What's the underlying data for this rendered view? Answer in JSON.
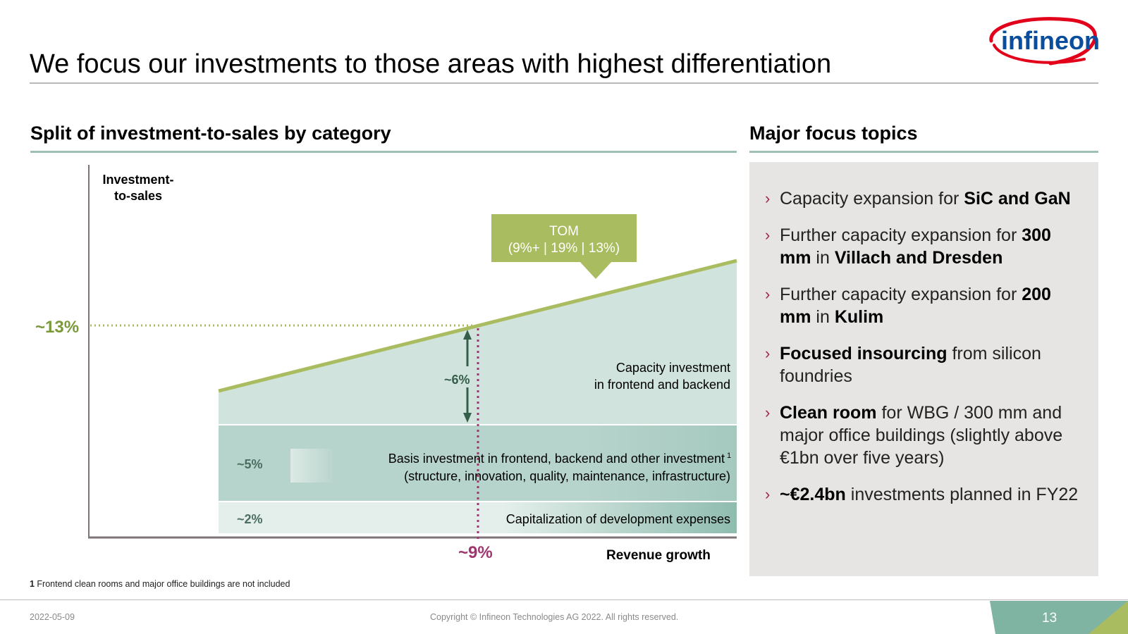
{
  "slide": {
    "title": "We focus our investments to those areas with highest differentiation",
    "logo_text": "infineon",
    "left_heading": "Split of investment-to-sales by category",
    "right_heading": "Major focus topics"
  },
  "diagram": {
    "y_axis_label": [
      "Investment-",
      "to-sales"
    ],
    "x_axis_label": "Revenue growth",
    "target_value": "~13%",
    "growth_value": "~9%",
    "delta_value": "~6%",
    "tom_box": [
      "TOM",
      "(9%+ | 19% | 13%)"
    ],
    "layers": [
      {
        "name": "capacity",
        "value": "",
        "label": [
          "Capacity investment",
          "in frontend and backend"
        ]
      },
      {
        "name": "basis",
        "value": "~5%",
        "label": [
          "Basis investment in frontend, backend and other investment",
          "(structure, innovation, quality, maintenance, infrastructure)"
        ],
        "footnote_marker": "1"
      },
      {
        "name": "capitalization",
        "value": "~2%",
        "label": [
          "Capitalization of development expenses"
        ]
      }
    ],
    "colors": {
      "accent_green": "#7a9a3a",
      "line_green": "#a9bc60",
      "magenta": "#a0366e",
      "capacity_fill": "#d0e3dd",
      "basis_fill": "#b7d4cc",
      "cap_fill": "#e4efeb",
      "arrow": "#355e4a"
    }
  },
  "focus_topics": [
    {
      "parts": [
        {
          "t": "Capacity expansion for ",
          "b": false
        },
        {
          "t": "SiC and GaN",
          "b": true
        }
      ]
    },
    {
      "parts": [
        {
          "t": "Further capacity expansion for ",
          "b": false
        },
        {
          "t": "300 mm",
          "b": true
        },
        {
          "t": " in ",
          "b": false
        },
        {
          "t": "Villach and Dresden",
          "b": true
        }
      ]
    },
    {
      "parts": [
        {
          "t": "Further capacity expansion for ",
          "b": false
        },
        {
          "t": "200 mm",
          "b": true
        },
        {
          "t": " in ",
          "b": false
        },
        {
          "t": "Kulim",
          "b": true
        }
      ]
    },
    {
      "parts": [
        {
          "t": "Focused insourcing",
          "b": true
        },
        {
          "t": " from silicon foundries",
          "b": false
        }
      ]
    },
    {
      "parts": [
        {
          "t": "Clean room",
          "b": true
        },
        {
          "t": " for WBG / 300 mm and major office buildings (slightly above €1bn over five years)",
          "b": false
        }
      ]
    },
    {
      "parts": [
        {
          "t": "~€2.4bn",
          "b": true
        },
        {
          "t": " investments planned in FY22",
          "b": false
        }
      ]
    }
  ],
  "focus_chevron": "›",
  "footnote": {
    "marker": "1",
    "text": " Frontend clean rooms and major office buildings are not included"
  },
  "footer": {
    "date": "2022-05-09",
    "copyright": "Copyright © Infineon Technologies AG 2022. All rights reserved.",
    "page": "13"
  }
}
